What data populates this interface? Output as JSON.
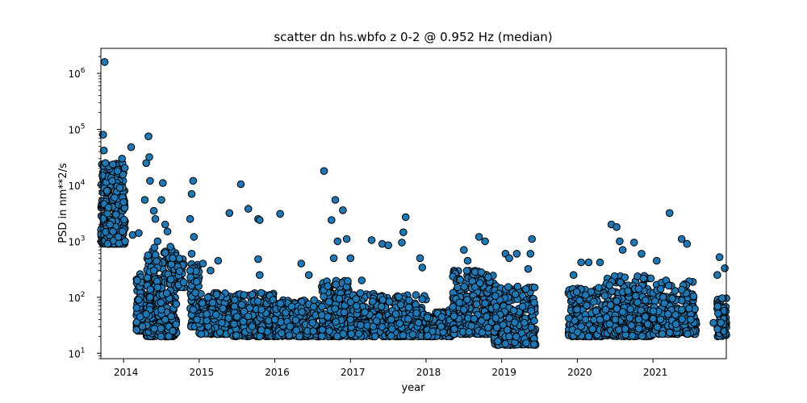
{
  "chart_data": {
    "type": "scatter",
    "title": "scatter dn hs.wbfo z 0-2 @ 0.952 Hz (median)",
    "xlabel": "year",
    "ylabel": "PSD in nm**2/s",
    "xlim": [
      2013.7,
      2021.97
    ],
    "ylim": [
      8,
      2800000
    ],
    "yscale": "log",
    "grid": false,
    "marker_color": "#1f77b4",
    "marker_edge_color": "#000000",
    "x_ticks": [
      {
        "value": 2014,
        "label": "2014"
      },
      {
        "value": 2015,
        "label": "2015"
      },
      {
        "value": 2016,
        "label": "2016"
      },
      {
        "value": 2017,
        "label": "2017"
      },
      {
        "value": 2018,
        "label": "2018"
      },
      {
        "value": 2019,
        "label": "2019"
      },
      {
        "value": 2020,
        "label": "2020"
      },
      {
        "value": 2021,
        "label": "2021"
      }
    ],
    "y_ticks": [
      {
        "value": 10,
        "base": "10",
        "exp": "1"
      },
      {
        "value": 100,
        "base": "10",
        "exp": "2"
      },
      {
        "value": 1000,
        "base": "10",
        "exp": "3"
      },
      {
        "value": 10000,
        "base": "10",
        "exp": "4"
      },
      {
        "value": 100000,
        "base": "10",
        "exp": "5"
      },
      {
        "value": 1000000,
        "base": "10",
        "exp": "6"
      }
    ],
    "points": [
      [
        2013.75,
        1600000
      ],
      [
        2013.73,
        80000
      ],
      [
        2013.74,
        42000
      ],
      [
        2013.76,
        25000
      ],
      [
        2013.72,
        15000
      ],
      [
        2013.78,
        8000
      ],
      [
        2013.8,
        4000
      ],
      [
        2013.82,
        2000
      ],
      [
        2013.85,
        12000
      ],
      [
        2013.88,
        6000
      ],
      [
        2013.9,
        3000
      ],
      [
        2013.92,
        18000
      ],
      [
        2013.95,
        9000
      ],
      [
        2013.98,
        30000
      ],
      [
        2014.0,
        5000
      ],
      [
        2013.93,
        1200
      ],
      [
        2013.86,
        1500
      ],
      [
        2013.79,
        900
      ],
      [
        2014.02,
        1000
      ],
      [
        2014.1,
        48000
      ],
      [
        2014.12,
        1300
      ],
      [
        2014.2,
        1400
      ],
      [
        2014.18,
        200
      ],
      [
        2014.2,
        90
      ],
      [
        2014.22,
        45
      ],
      [
        2014.25,
        30
      ],
      [
        2014.28,
        5500
      ],
      [
        2014.3,
        25000
      ],
      [
        2014.33,
        75000
      ],
      [
        2014.34,
        32000
      ],
      [
        2014.35,
        12000
      ],
      [
        2014.4,
        3500
      ],
      [
        2014.42,
        2500
      ],
      [
        2014.45,
        1000
      ],
      [
        2014.5,
        5500
      ],
      [
        2014.52,
        11000
      ],
      [
        2014.55,
        2000
      ],
      [
        2014.58,
        1500
      ],
      [
        2014.62,
        800
      ],
      [
        2014.65,
        500
      ],
      [
        2014.4,
        300
      ],
      [
        2014.45,
        150
      ],
      [
        2014.5,
        60
      ],
      [
        2014.55,
        40
      ],
      [
        2014.6,
        30
      ],
      [
        2014.65,
        25
      ],
      [
        2014.35,
        100
      ],
      [
        2014.3,
        50
      ],
      [
        2014.9,
        7000
      ],
      [
        2014.92,
        12000
      ],
      [
        2014.88,
        2500
      ],
      [
        2014.93,
        1200
      ],
      [
        2014.9,
        600
      ],
      [
        2014.88,
        300
      ],
      [
        2014.95,
        120
      ],
      [
        2014.92,
        60
      ],
      [
        2014.97,
        40
      ],
      [
        2015.05,
        400
      ],
      [
        2015.15,
        300
      ],
      [
        2015.25,
        450
      ],
      [
        2015.4,
        3200
      ],
      [
        2015.55,
        10500
      ],
      [
        2015.65,
        3800
      ],
      [
        2015.78,
        2500
      ],
      [
        2015.8,
        2400
      ],
      [
        2015.78,
        480
      ],
      [
        2015.8,
        250
      ],
      [
        2016.07,
        3100
      ],
      [
        2016.35,
        400
      ],
      [
        2016.45,
        250
      ],
      [
        2016.65,
        18000
      ],
      [
        2016.75,
        2400
      ],
      [
        2016.8,
        5500
      ],
      [
        2016.9,
        3600
      ],
      [
        2016.78,
        500
      ],
      [
        2016.83,
        1000
      ],
      [
        2016.95,
        1100
      ],
      [
        2017.0,
        500
      ],
      [
        2017.15,
        200
      ],
      [
        2017.28,
        1050
      ],
      [
        2017.42,
        900
      ],
      [
        2017.5,
        850
      ],
      [
        2017.73,
        2700
      ],
      [
        2017.7,
        1450
      ],
      [
        2017.68,
        950
      ],
      [
        2017.92,
        500
      ],
      [
        2017.95,
        340
      ],
      [
        2018.5,
        700
      ],
      [
        2018.55,
        450
      ],
      [
        2018.7,
        1200
      ],
      [
        2018.78,
        1000
      ],
      [
        2019.05,
        600
      ],
      [
        2019.1,
        500
      ],
      [
        2019.2,
        600
      ],
      [
        2019.4,
        1100
      ],
      [
        2019.38,
        600
      ],
      [
        2019.35,
        320
      ],
      [
        2019.95,
        250
      ],
      [
        2020.05,
        420
      ],
      [
        2020.15,
        420
      ],
      [
        2020.3,
        420
      ],
      [
        2020.45,
        2000
      ],
      [
        2020.52,
        1800
      ],
      [
        2020.56,
        1000
      ],
      [
        2020.6,
        700
      ],
      [
        2020.75,
        950
      ],
      [
        2020.85,
        600
      ],
      [
        2021.05,
        450
      ],
      [
        2021.22,
        3200
      ],
      [
        2021.38,
        1100
      ],
      [
        2021.45,
        900
      ],
      [
        2021.85,
        250
      ],
      [
        2021.88,
        520
      ],
      [
        2021.95,
        330
      ],
      [
        2015.1,
        50
      ],
      [
        2015.3,
        35
      ],
      [
        2015.5,
        45
      ],
      [
        2015.7,
        30
      ],
      [
        2016.0,
        40
      ],
      [
        2016.2,
        30
      ],
      [
        2016.5,
        35
      ],
      [
        2016.7,
        45
      ],
      [
        2017.0,
        40
      ],
      [
        2017.3,
        30
      ],
      [
        2017.6,
        50
      ],
      [
        2017.9,
        35
      ],
      [
        2018.2,
        30
      ],
      [
        2018.5,
        60
      ],
      [
        2018.8,
        45
      ],
      [
        2019.1,
        20
      ],
      [
        2019.3,
        35
      ],
      [
        2020.05,
        30
      ],
      [
        2020.3,
        40
      ],
      [
        2020.6,
        55
      ],
      [
        2020.9,
        45
      ],
      [
        2021.2,
        50
      ],
      [
        2021.5,
        40
      ],
      [
        2021.8,
        35
      ]
    ],
    "clusters": [
      {
        "x": [
          2013.7,
          2014.02
        ],
        "y": [
          900,
          25000
        ],
        "n": 320
      },
      {
        "x": [
          2014.17,
          2014.26
        ],
        "y": [
          25,
          300
        ],
        "n": 70
      },
      {
        "x": [
          2014.3,
          2014.7
        ],
        "y": [
          20,
          800
        ],
        "n": 330
      },
      {
        "x": [
          2014.7,
          2014.8
        ],
        "y": [
          150,
          600
        ],
        "n": 35
      },
      {
        "x": [
          2014.88,
          2015.0
        ],
        "y": [
          30,
          400
        ],
        "n": 90
      },
      {
        "x": [
          2015.0,
          2015.45
        ],
        "y": [
          22,
          120
        ],
        "n": 220
      },
      {
        "x": [
          2015.45,
          2016.0
        ],
        "y": [
          20,
          120
        ],
        "n": 260
      },
      {
        "x": [
          2016.0,
          2016.6
        ],
        "y": [
          20,
          90
        ],
        "n": 260
      },
      {
        "x": [
          2016.6,
          2017.0
        ],
        "y": [
          20,
          200
        ],
        "n": 220
      },
      {
        "x": [
          2017.0,
          2017.5
        ],
        "y": [
          20,
          120
        ],
        "n": 230
      },
      {
        "x": [
          2017.5,
          2018.0
        ],
        "y": [
          20,
          110
        ],
        "n": 200
      },
      {
        "x": [
          2018.0,
          2018.35
        ],
        "y": [
          20,
          60
        ],
        "n": 120
      },
      {
        "x": [
          2018.35,
          2018.9
        ],
        "y": [
          22,
          300
        ],
        "n": 320
      },
      {
        "x": [
          2018.9,
          2019.45
        ],
        "y": [
          14,
          160
        ],
        "n": 280
      },
      {
        "x": [
          2019.88,
          2020.35
        ],
        "y": [
          20,
          150
        ],
        "n": 200
      },
      {
        "x": [
          2020.35,
          2021.0
        ],
        "y": [
          20,
          250
        ],
        "n": 330
      },
      {
        "x": [
          2021.0,
          2021.58
        ],
        "y": [
          22,
          200
        ],
        "n": 220
      },
      {
        "x": [
          2021.85,
          2021.97
        ],
        "y": [
          20,
          100
        ],
        "n": 80
      }
    ]
  }
}
